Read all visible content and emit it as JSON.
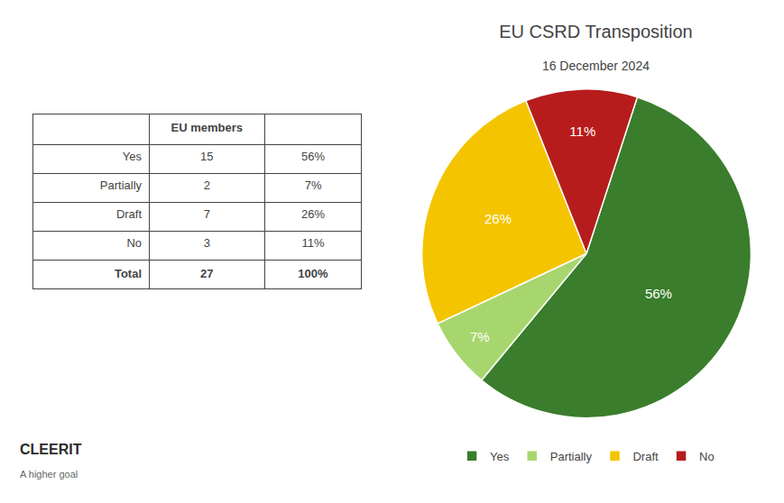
{
  "chart_data": {
    "type": "pie",
    "title": "EU CSRD Transposition",
    "subtitle": "16 December 2024",
    "categories": [
      "Yes",
      "Partially",
      "Draft",
      "No"
    ],
    "values": [
      56,
      7,
      26,
      11
    ],
    "value_labels": [
      "56%",
      "7%",
      "26%",
      "11%"
    ],
    "colors": [
      "#3a7d2c",
      "#a8d66e",
      "#f5c400",
      "#b71c1c"
    ],
    "data_labels": true,
    "legend": "bottom",
    "table": {
      "header": "EU members",
      "rows": [
        "Yes",
        "Partially",
        "Draft",
        "No",
        "Total"
      ],
      "values": [
        15,
        2,
        7,
        3,
        27
      ],
      "share_labels": [
        "56%",
        "7%",
        "26%",
        "11%",
        "100%"
      ]
    },
    "annotations": [
      "CLEERIT",
      "A higher goal"
    ]
  }
}
